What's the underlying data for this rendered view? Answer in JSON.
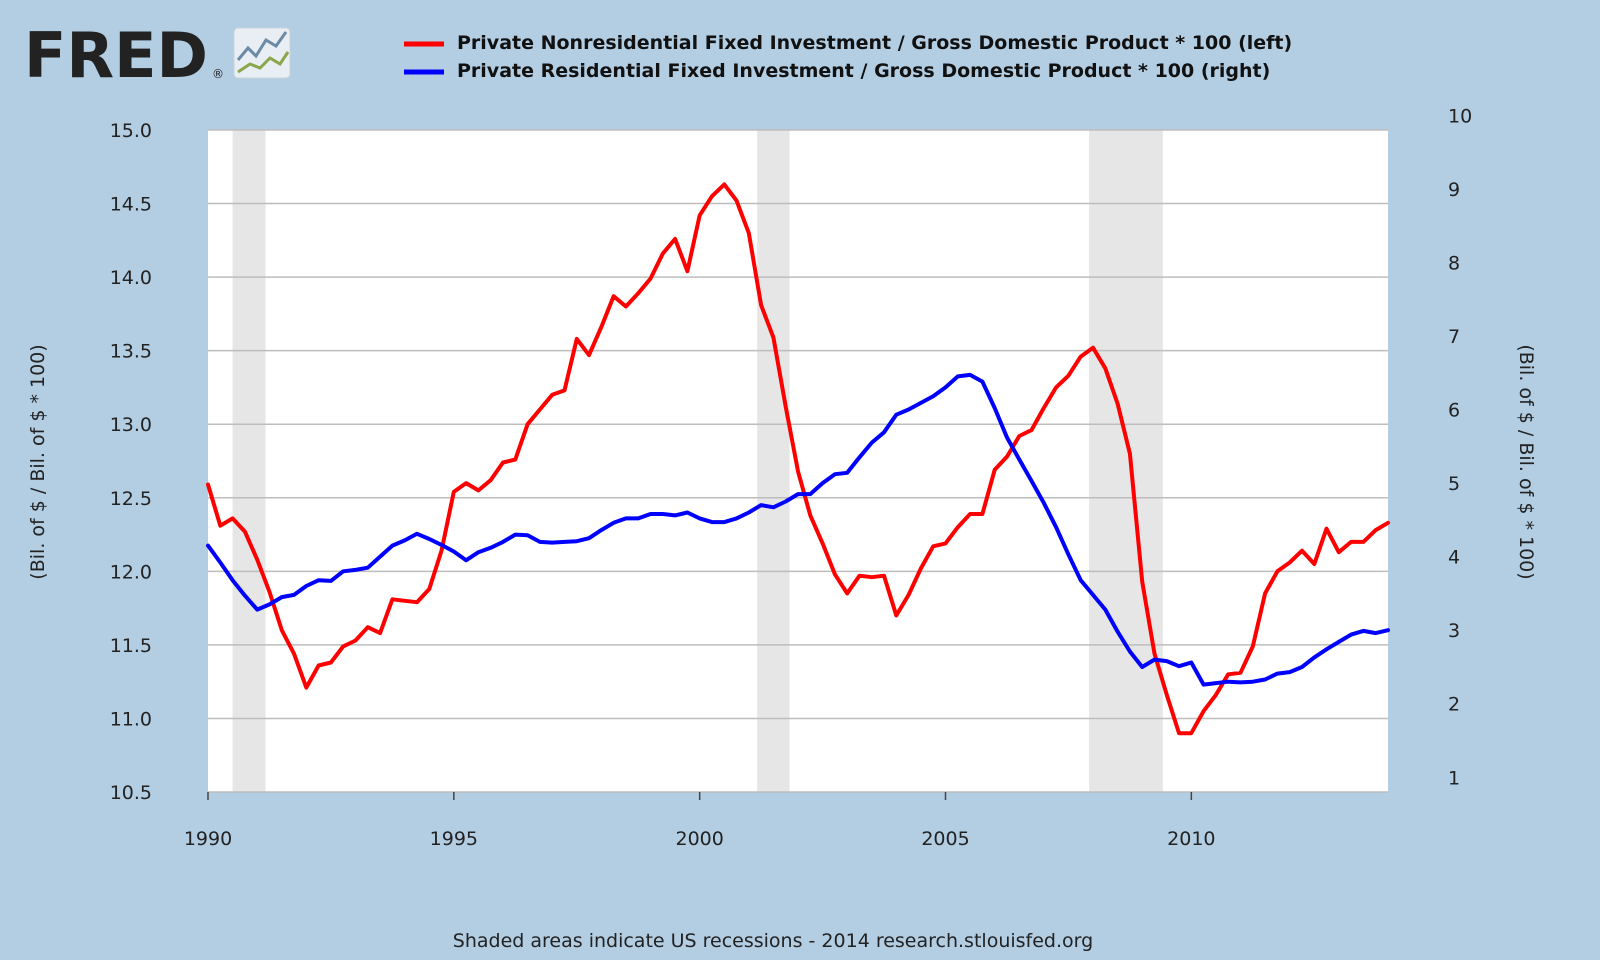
{
  "logo": {
    "text": "FRED",
    "reg_mark": "®"
  },
  "chart_data": {
    "type": "line",
    "series": [
      {
        "name": "Private Nonresidential Fixed Investment / Gross Domestic Product * 100 (left)",
        "axis": "left",
        "color": "#ff0000",
        "x": [
          1990.0,
          1990.25,
          1990.5,
          1990.75,
          1991.0,
          1991.25,
          1991.5,
          1991.75,
          1992.0,
          1992.25,
          1992.5,
          1992.75,
          1993.0,
          1993.25,
          1993.5,
          1993.75,
          1994.0,
          1994.25,
          1994.5,
          1994.75,
          1995.0,
          1995.25,
          1995.5,
          1995.75,
          1996.0,
          1996.25,
          1996.5,
          1996.75,
          1997.0,
          1997.25,
          1997.5,
          1997.75,
          1998.0,
          1998.25,
          1998.5,
          1998.75,
          1999.0,
          1999.25,
          1999.5,
          1999.75,
          2000.0,
          2000.25,
          2000.5,
          2000.75,
          2001.0,
          2001.25,
          2001.5,
          2001.75,
          2002.0,
          2002.25,
          2002.5,
          2002.75,
          2003.0,
          2003.25,
          2003.5,
          2003.75,
          2004.0,
          2004.25,
          2004.5,
          2004.75,
          2005.0,
          2005.25,
          2005.5,
          2005.75,
          2006.0,
          2006.25,
          2006.5,
          2006.75,
          2007.0,
          2007.25,
          2007.5,
          2007.75,
          2008.0,
          2008.25,
          2008.5,
          2008.75,
          2009.0,
          2009.25,
          2009.5,
          2009.75,
          2010.0,
          2010.25,
          2010.5,
          2010.75,
          2011.0,
          2011.25,
          2011.5,
          2011.75,
          2012.0,
          2012.25,
          2012.5,
          2012.75,
          2013.0,
          2013.25,
          2013.5,
          2013.75,
          2014.0
        ],
        "values": [
          12.59,
          12.31,
          12.36,
          12.27,
          12.08,
          11.86,
          11.6,
          11.44,
          11.21,
          11.36,
          11.38,
          11.49,
          11.53,
          11.62,
          11.58,
          11.81,
          11.8,
          11.79,
          11.88,
          12.14,
          12.54,
          12.6,
          12.55,
          12.62,
          12.74,
          12.76,
          13.0,
          13.1,
          13.2,
          13.23,
          13.58,
          13.47,
          13.66,
          13.87,
          13.8,
          13.89,
          13.99,
          14.16,
          14.26,
          14.04,
          14.42,
          14.55,
          14.63,
          14.52,
          14.3,
          13.81,
          13.59,
          13.12,
          12.68,
          12.38,
          12.19,
          11.98,
          11.85,
          11.97,
          11.96,
          11.97,
          11.7,
          11.84,
          12.02,
          12.17,
          12.19,
          12.3,
          12.39,
          12.39,
          12.69,
          12.78,
          12.92,
          12.96,
          13.11,
          13.25,
          13.33,
          13.46,
          13.52,
          13.38,
          13.14,
          12.8,
          11.93,
          11.44,
          11.16,
          10.9,
          10.9,
          11.05,
          11.16,
          11.3,
          11.31,
          11.49,
          11.85,
          12.0,
          12.06,
          12.14,
          12.05,
          12.29,
          12.13,
          12.2,
          12.2,
          12.28,
          12.33
        ]
      },
      {
        "name": "Private Residential Fixed Investment / Gross Domestic Product * 100 (right)",
        "axis": "right",
        "color": "#0000ff",
        "x": [
          1990.0,
          1990.25,
          1990.5,
          1990.75,
          1991.0,
          1991.25,
          1991.5,
          1991.75,
          1992.0,
          1992.25,
          1992.5,
          1992.75,
          1993.0,
          1993.25,
          1993.5,
          1993.75,
          1994.0,
          1994.25,
          1994.5,
          1994.75,
          1995.0,
          1995.25,
          1995.5,
          1995.75,
          1996.0,
          1996.25,
          1996.5,
          1996.75,
          1997.0,
          1997.25,
          1997.5,
          1997.75,
          1998.0,
          1998.25,
          1998.5,
          1998.75,
          1999.0,
          1999.25,
          1999.5,
          1999.75,
          2000.0,
          2000.25,
          2000.5,
          2000.75,
          2001.0,
          2001.25,
          2001.5,
          2001.75,
          2002.0,
          2002.25,
          2002.5,
          2002.75,
          2003.0,
          2003.25,
          2003.5,
          2003.75,
          2004.0,
          2004.25,
          2004.5,
          2004.75,
          2005.0,
          2005.25,
          2005.5,
          2005.75,
          2006.0,
          2006.25,
          2006.5,
          2006.75,
          2007.0,
          2007.25,
          2007.5,
          2007.75,
          2008.0,
          2008.25,
          2008.5,
          2008.75,
          2009.0,
          2009.25,
          2009.5,
          2009.75,
          2010.0,
          2010.25,
          2010.5,
          2010.75,
          2011.0,
          2011.25,
          2011.5,
          2011.75,
          2012.0,
          2012.25,
          2012.5,
          2012.75,
          2013.0,
          2013.25,
          2013.5,
          2013.75,
          2014.0
        ],
        "values": [
          4.15,
          3.92,
          3.68,
          3.47,
          3.28,
          3.35,
          3.45,
          3.48,
          3.6,
          3.68,
          3.67,
          3.8,
          3.82,
          3.85,
          4.0,
          4.15,
          4.22,
          4.31,
          4.24,
          4.16,
          4.07,
          3.95,
          4.06,
          4.12,
          4.2,
          4.3,
          4.29,
          4.2,
          4.19,
          4.2,
          4.21,
          4.25,
          4.36,
          4.46,
          4.52,
          4.52,
          4.58,
          4.58,
          4.56,
          4.6,
          4.52,
          4.47,
          4.47,
          4.52,
          4.6,
          4.7,
          4.67,
          4.75,
          4.85,
          4.85,
          5.0,
          5.12,
          5.14,
          5.35,
          5.55,
          5.69,
          5.93,
          6.0,
          6.09,
          6.18,
          6.3,
          6.45,
          6.47,
          6.38,
          6.02,
          5.62,
          5.32,
          5.03,
          4.73,
          4.4,
          4.03,
          3.68,
          3.48,
          3.28,
          2.98,
          2.71,
          2.5,
          2.6,
          2.58,
          2.51,
          2.56,
          2.26,
          2.28,
          2.3,
          2.29,
          2.3,
          2.33,
          2.41,
          2.43,
          2.5,
          2.63,
          2.74,
          2.84,
          2.94,
          2.99,
          2.96,
          3.0
        ]
      }
    ],
    "recessions": [
      [
        1990.5,
        1991.17
      ],
      [
        2001.17,
        2001.83
      ],
      [
        2007.92,
        2009.42
      ]
    ],
    "xlim": [
      1990,
      2014
    ],
    "x_ticks": [
      1990,
      1995,
      2000,
      2005,
      2010
    ],
    "ylim_left": [
      10.5,
      15.0
    ],
    "y_ticks_left": [
      "10.5",
      "11.0",
      "11.5",
      "12.0",
      "12.5",
      "13.0",
      "13.5",
      "14.0",
      "14.5",
      "15.0"
    ],
    "ylim_right": [
      0.8,
      9.8
    ],
    "y_ticks_right": [
      "1",
      "2",
      "3",
      "4",
      "5",
      "6",
      "7",
      "8",
      "9",
      "10"
    ],
    "ylabel_left": "(Bil. of $ / Bil. of $ * 100)",
    "ylabel_right": "(Bil. of $ / Bil. of $ * 100)",
    "grid": true,
    "legend_position": "top",
    "recession_color": "#e6e6e6"
  },
  "footer": {
    "text": "Shaded areas indicate US recessions - 2014 research.stlouisfed.org"
  }
}
